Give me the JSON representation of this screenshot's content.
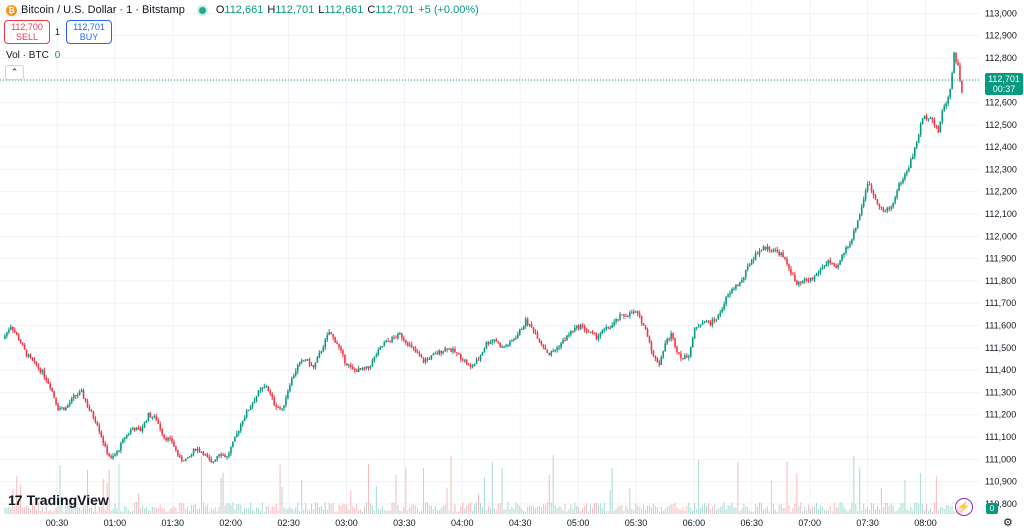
{
  "legend": {
    "coin_symbol": "₿",
    "title": "Bitcoin / U.S. Dollar · 1 · Bitstamp",
    "o_key": "O",
    "o_val": "112,661",
    "h_key": "H",
    "h_val": "112,701",
    "l_key": "L",
    "l_val": "112,661",
    "c_key": "C",
    "c_val": "112,701",
    "change": "+5 (+0.00%)"
  },
  "trade": {
    "sell_price": "112,700",
    "sell_label": "SELL",
    "spread": "1",
    "buy_price": "112,701",
    "buy_label": "BUY"
  },
  "volume": {
    "label": "Vol · BTC",
    "value": "0"
  },
  "logo": {
    "mark": "17",
    "name": "TradingView"
  },
  "price_badge": {
    "price": "112,701",
    "countdown": "00:37"
  },
  "zero_badge": "0",
  "icons": {
    "flash": "flash-icon",
    "gear": "gear-icon",
    "collapse": "chevron-up-icon"
  },
  "colors": {
    "up": "#089981",
    "down": "#f23645",
    "last_price": "#089981"
  },
  "chart_data": {
    "type": "candlestick",
    "symbol": "Bitcoin / U.S. Dollar",
    "interval": "1",
    "exchange": "Bitstamp",
    "ylim": [
      110800,
      113000
    ],
    "y_ticks": [
      "110,800",
      "110,900",
      "111,000",
      "111,100",
      "111,200",
      "111,300",
      "111,400",
      "111,500",
      "111,600",
      "111,700",
      "111,800",
      "111,900",
      "112,000",
      "112,100",
      "112,200",
      "112,300",
      "112,400",
      "112,500",
      "112,600",
      "112,700",
      "112,800",
      "112,900",
      "113,000"
    ],
    "x_ticks": [
      "00:30",
      "01:00",
      "01:30",
      "02:00",
      "02:30",
      "03:00",
      "03:30",
      "04:00",
      "04:30",
      "05:00",
      "05:30",
      "06:00",
      "06:30",
      "07:00",
      "07:30",
      "08:00"
    ],
    "last_price": 112701,
    "price_path": [
      [
        0,
        111540
      ],
      [
        4,
        111600
      ],
      [
        8,
        111540
      ],
      [
        12,
        111470
      ],
      [
        16,
        111430
      ],
      [
        20,
        111390
      ],
      [
        24,
        111330
      ],
      [
        28,
        111230
      ],
      [
        32,
        111230
      ],
      [
        36,
        111280
      ],
      [
        40,
        111300
      ],
      [
        44,
        111220
      ],
      [
        48,
        111160
      ],
      [
        52,
        111050
      ],
      [
        55,
        111000
      ],
      [
        58,
        111030
      ],
      [
        62,
        111100
      ],
      [
        66,
        111140
      ],
      [
        70,
        111130
      ],
      [
        74,
        111200
      ],
      [
        78,
        111180
      ],
      [
        82,
        111100
      ],
      [
        86,
        111080
      ],
      [
        90,
        111000
      ],
      [
        94,
        111000
      ],
      [
        98,
        111050
      ],
      [
        102,
        111030
      ],
      [
        106,
        110980
      ],
      [
        110,
        111030
      ],
      [
        114,
        111010
      ],
      [
        118,
        111090
      ],
      [
        122,
        111180
      ],
      [
        126,
        111240
      ],
      [
        130,
        111300
      ],
      [
        134,
        111330
      ],
      [
        138,
        111250
      ],
      [
        142,
        111220
      ],
      [
        146,
        111340
      ],
      [
        150,
        111420
      ],
      [
        154,
        111450
      ],
      [
        158,
        111410
      ],
      [
        162,
        111490
      ],
      [
        166,
        111570
      ],
      [
        170,
        111520
      ],
      [
        174,
        111440
      ],
      [
        178,
        111400
      ],
      [
        182,
        111400
      ],
      [
        186,
        111410
      ],
      [
        190,
        111470
      ],
      [
        194,
        111520
      ],
      [
        198,
        111540
      ],
      [
        202,
        111560
      ],
      [
        206,
        111520
      ],
      [
        210,
        111480
      ],
      [
        214,
        111440
      ],
      [
        218,
        111460
      ],
      [
        222,
        111480
      ],
      [
        226,
        111500
      ],
      [
        230,
        111480
      ],
      [
        234,
        111450
      ],
      [
        238,
        111410
      ],
      [
        242,
        111450
      ],
      [
        246,
        111520
      ],
      [
        250,
        111540
      ],
      [
        254,
        111500
      ],
      [
        258,
        111520
      ],
      [
        262,
        111560
      ],
      [
        266,
        111620
      ],
      [
        270,
        111580
      ],
      [
        274,
        111520
      ],
      [
        278,
        111470
      ],
      [
        282,
        111500
      ],
      [
        286,
        111540
      ],
      [
        290,
        111580
      ],
      [
        294,
        111600
      ],
      [
        298,
        111570
      ],
      [
        302,
        111550
      ],
      [
        306,
        111580
      ],
      [
        310,
        111600
      ],
      [
        314,
        111640
      ],
      [
        318,
        111650
      ],
      [
        322,
        111660
      ],
      [
        325,
        111620
      ],
      [
        328,
        111560
      ],
      [
        331,
        111460
      ],
      [
        334,
        111430
      ],
      [
        337,
        111520
      ],
      [
        340,
        111560
      ],
      [
        343,
        111490
      ],
      [
        346,
        111450
      ],
      [
        349,
        111470
      ],
      [
        352,
        111580
      ],
      [
        356,
        111620
      ],
      [
        360,
        111610
      ],
      [
        364,
        111640
      ],
      [
        368,
        111720
      ],
      [
        372,
        111770
      ],
      [
        376,
        111800
      ],
      [
        380,
        111880
      ],
      [
        384,
        111930
      ],
      [
        388,
        111950
      ],
      [
        392,
        111940
      ],
      [
        396,
        111920
      ],
      [
        400,
        111860
      ],
      [
        404,
        111780
      ],
      [
        408,
        111800
      ],
      [
        412,
        111810
      ],
      [
        416,
        111850
      ],
      [
        420,
        111890
      ],
      [
        424,
        111850
      ],
      [
        428,
        111930
      ],
      [
        432,
        111990
      ],
      [
        436,
        112100
      ],
      [
        440,
        112240
      ],
      [
        444,
        112170
      ],
      [
        448,
        112110
      ],
      [
        452,
        112130
      ],
      [
        456,
        112230
      ],
      [
        460,
        112290
      ],
      [
        464,
        112390
      ],
      [
        468,
        112530
      ],
      [
        472,
        112540
      ],
      [
        474,
        112500
      ],
      [
        476,
        112470
      ],
      [
        478,
        112560
      ],
      [
        480,
        112600
      ],
      [
        482,
        112660
      ],
      [
        484,
        112820
      ],
      [
        486,
        112760
      ],
      [
        488,
        112650
      ]
    ]
  }
}
